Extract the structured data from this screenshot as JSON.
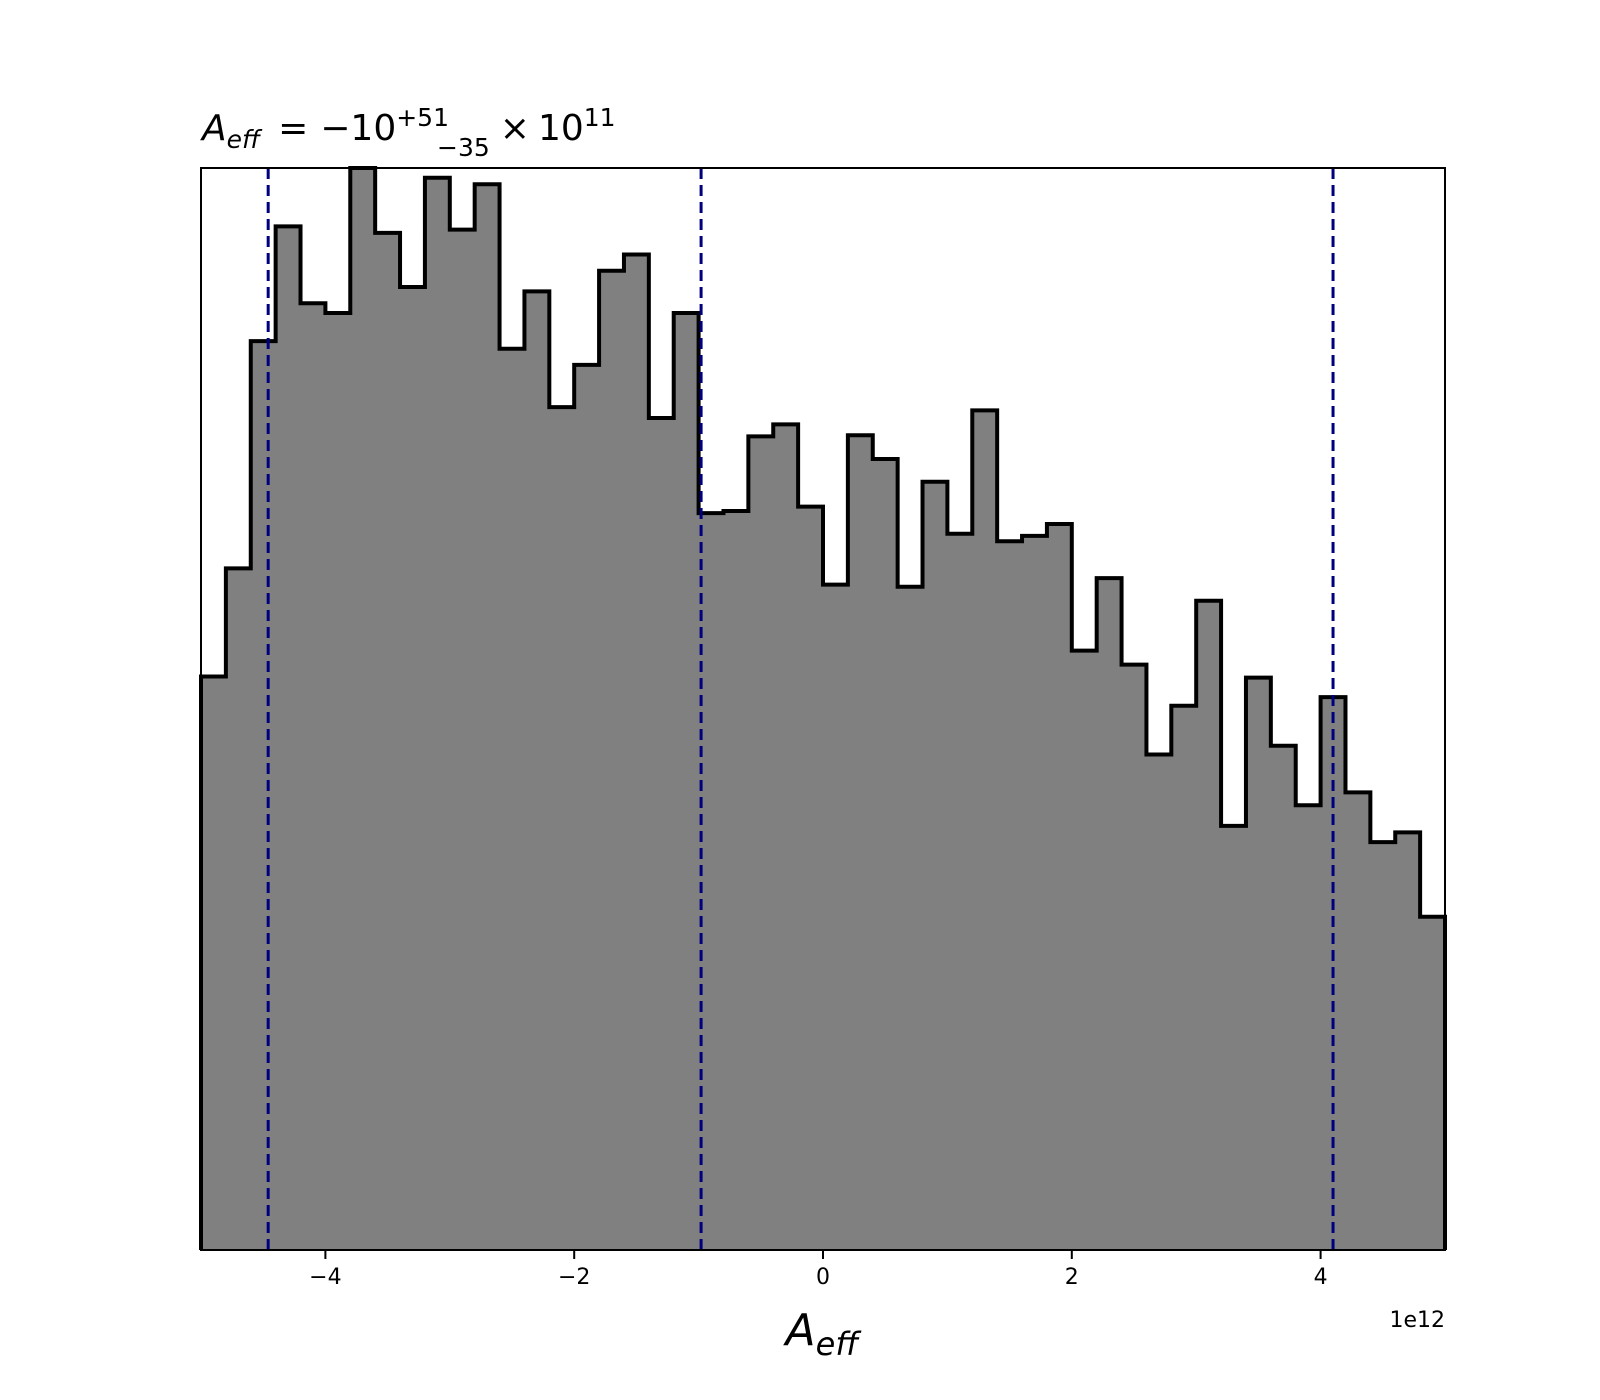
{
  "chart_data": {
    "type": "histogram",
    "title": {
      "lhs_base": "A",
      "lhs_sub": "eff",
      "equals": "=",
      "value": "−10",
      "upper": "+51",
      "lower": "−35",
      "times": "×",
      "exp_base": "10",
      "exp": "11"
    },
    "xlabel": {
      "base": "A",
      "sub": "eff"
    },
    "ylabel": "",
    "x_offset_label": "1e12",
    "xlim": [
      -5000000000000.0,
      5000000000000.0
    ],
    "ylim": [
      0,
      1.0
    ],
    "xticks": [
      -4000000000000.0,
      -2000000000000.0,
      0,
      2000000000000.0,
      4000000000000.0
    ],
    "xtick_labels": [
      "−4",
      "−2",
      "0",
      "2",
      "4"
    ],
    "show_yticks": false,
    "grid": false,
    "bins_start": -5000000000000.0,
    "bin_width": 200000000000.0,
    "counts": [
      0.53,
      0.63,
      0.84,
      0.946,
      0.875,
      0.866,
      1.0,
      0.94,
      0.89,
      0.991,
      0.943,
      0.985,
      0.833,
      0.886,
      0.779,
      0.818,
      0.905,
      0.92,
      0.769,
      0.866,
      0.681,
      0.683,
      0.752,
      0.763,
      0.687,
      0.615,
      0.753,
      0.731,
      0.613,
      0.71,
      0.662,
      0.776,
      0.655,
      0.66,
      0.671,
      0.554,
      0.621,
      0.541,
      0.458,
      0.503,
      0.6,
      0.392,
      0.529,
      0.466,
      0.411,
      0.511,
      0.423,
      0.377,
      0.386,
      0.308
    ],
    "fill_color": "#808080",
    "edge_color": "#000000",
    "quantiles": [
      -4460000000000.0,
      -980000000000.0,
      4100000000000.0
    ],
    "quantile_color": "#00007f"
  }
}
